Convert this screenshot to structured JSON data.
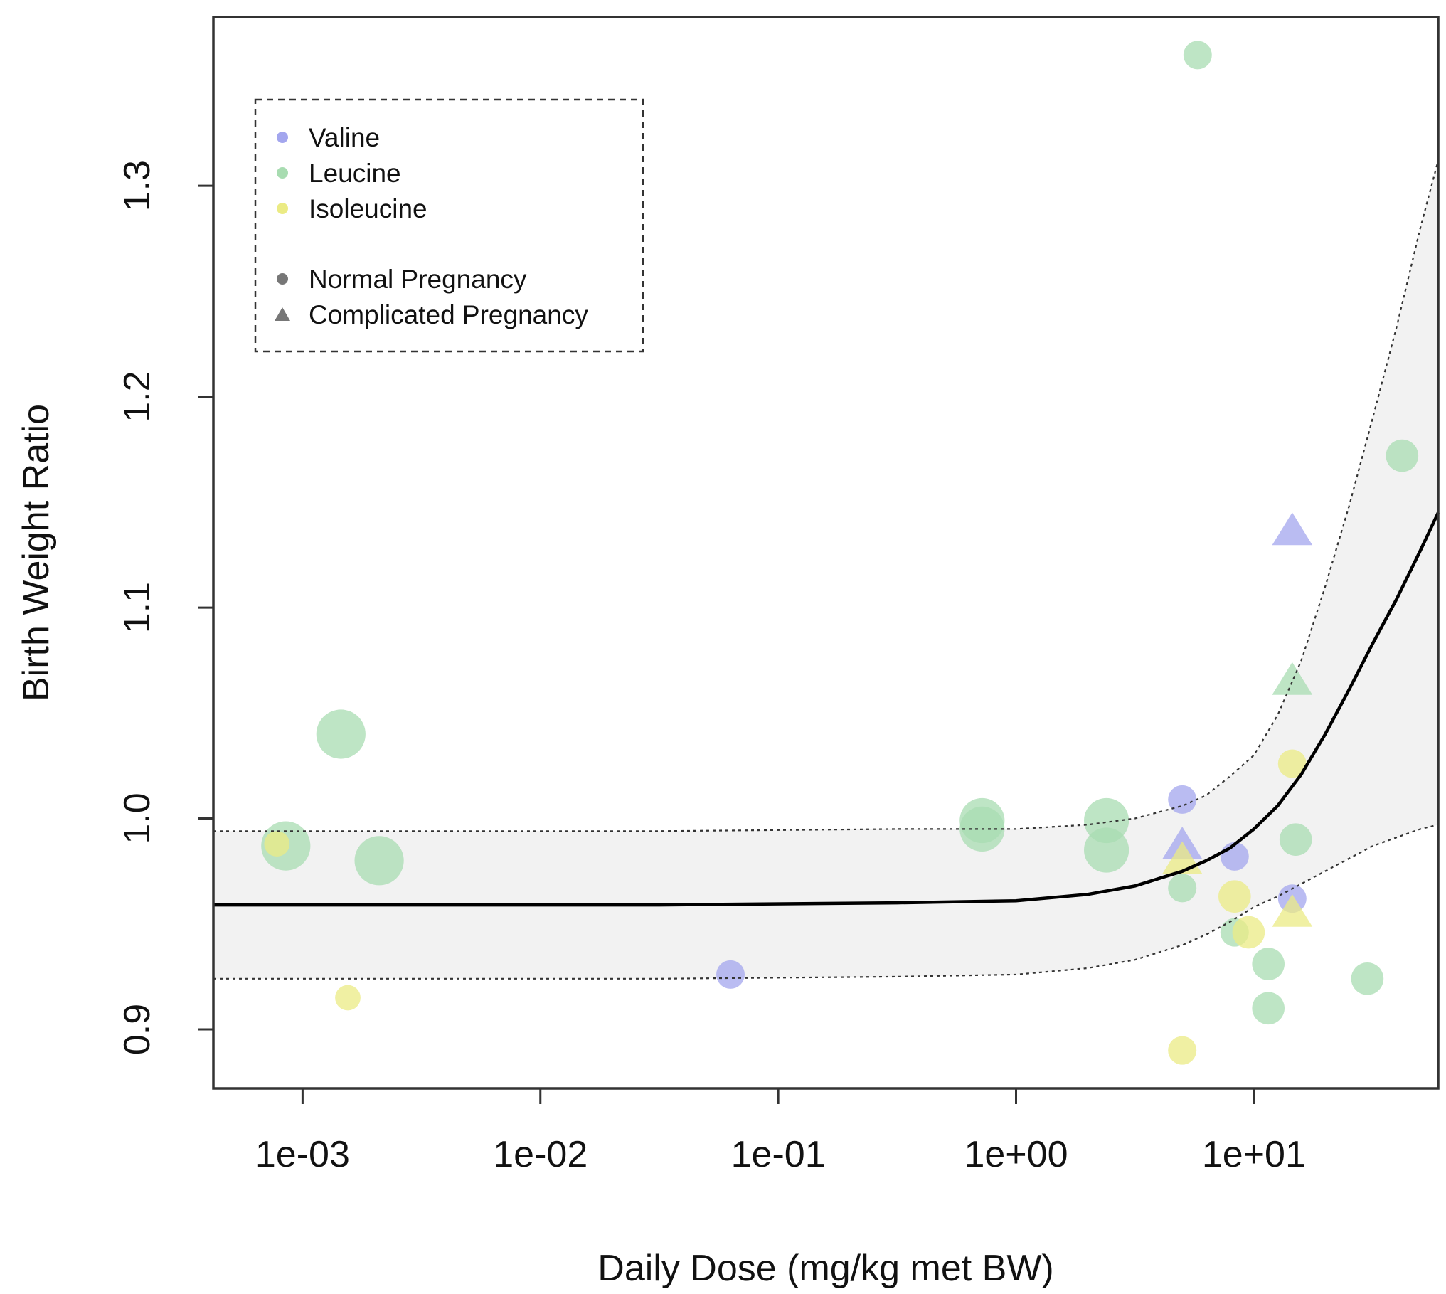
{
  "chart_data": {
    "type": "scatter",
    "title": "",
    "xlabel": "Daily Dose (mg/kg met BW)",
    "ylabel": "Birth Weight Ratio",
    "x_scale": "log10",
    "xlim_log10": [
      -3.375,
      1.775
    ],
    "ylim": [
      0.872,
      1.38
    ],
    "x_ticks": [
      {
        "value": 0.001,
        "label": "1e-03"
      },
      {
        "value": 0.01,
        "label": "1e-02"
      },
      {
        "value": 0.1,
        "label": "1e-01"
      },
      {
        "value": 1,
        "label": "1e+00"
      },
      {
        "value": 10,
        "label": "1e+01"
      }
    ],
    "y_ticks": [
      {
        "value": 0.9,
        "label": "0.9"
      },
      {
        "value": 1.0,
        "label": "1.0"
      },
      {
        "value": 1.1,
        "label": "1.1"
      },
      {
        "value": 1.2,
        "label": "1.2"
      },
      {
        "value": 1.3,
        "label": "1.3"
      }
    ],
    "colors": {
      "Valine": "#a3a6ee",
      "Leucine": "#a8dcb1",
      "Isoleucine": "#ebeb84",
      "fit": "#000000",
      "band": "#f2f2f2"
    },
    "legend": {
      "placement": "top-left",
      "series_entries": [
        "Valine",
        "Leucine",
        "Isoleucine"
      ],
      "shape_entries": [
        {
          "label": "Normal Pregnancy",
          "shape": "circle"
        },
        {
          "label": "Complicated Pregnancy",
          "shape": "triangle"
        }
      ]
    },
    "series": [
      {
        "name": "Valine",
        "points": [
          {
            "x": 0.063,
            "y": 0.926,
            "shape": "circle",
            "w": 1
          },
          {
            "x": 5.0,
            "y": 1.009,
            "shape": "circle",
            "w": 1
          },
          {
            "x": 8.3,
            "y": 0.982,
            "shape": "circle",
            "w": 1
          },
          {
            "x": 14.5,
            "y": 0.962,
            "shape": "circle",
            "w": 1
          },
          {
            "x": 14.5,
            "y": 1.136,
            "shape": "triangle",
            "w": 1
          },
          {
            "x": 5.0,
            "y": 0.987,
            "shape": "triangle",
            "w": 1
          }
        ]
      },
      {
        "name": "Leucine",
        "points": [
          {
            "x": 0.00085,
            "y": 0.987,
            "shape": "circle",
            "w": 3
          },
          {
            "x": 0.00145,
            "y": 1.04,
            "shape": "circle",
            "w": 3
          },
          {
            "x": 0.0021,
            "y": 0.98,
            "shape": "circle",
            "w": 3
          },
          {
            "x": 0.72,
            "y": 0.999,
            "shape": "circle",
            "w": 2.5
          },
          {
            "x": 0.72,
            "y": 0.995,
            "shape": "circle",
            "w": 2.5
          },
          {
            "x": 2.4,
            "y": 0.999,
            "shape": "circle",
            "w": 2.5
          },
          {
            "x": 2.4,
            "y": 0.985,
            "shape": "circle",
            "w": 2.5
          },
          {
            "x": 5.8,
            "y": 1.362,
            "shape": "circle",
            "w": 1
          },
          {
            "x": 5.0,
            "y": 0.967,
            "shape": "circle",
            "w": 1
          },
          {
            "x": 8.3,
            "y": 0.946,
            "shape": "circle",
            "w": 1
          },
          {
            "x": 11.5,
            "y": 0.931,
            "shape": "circle",
            "w": 1.3
          },
          {
            "x": 11.5,
            "y": 0.91,
            "shape": "circle",
            "w": 1.3
          },
          {
            "x": 15.0,
            "y": 0.99,
            "shape": "circle",
            "w": 1.3
          },
          {
            "x": 30.0,
            "y": 0.924,
            "shape": "circle",
            "w": 1.3
          },
          {
            "x": 42.0,
            "y": 1.172,
            "shape": "circle",
            "w": 1.3
          },
          {
            "x": 14.5,
            "y": 1.065,
            "shape": "triangle",
            "w": 1
          }
        ]
      },
      {
        "name": "Isoleucine",
        "points": [
          {
            "x": 0.00078,
            "y": 0.988,
            "shape": "circle",
            "w": 0.8
          },
          {
            "x": 0.00155,
            "y": 0.915,
            "shape": "circle",
            "w": 0.8
          },
          {
            "x": 5.0,
            "y": 0.89,
            "shape": "circle",
            "w": 1
          },
          {
            "x": 8.3,
            "y": 0.963,
            "shape": "circle",
            "w": 1.3
          },
          {
            "x": 9.5,
            "y": 0.946,
            "shape": "circle",
            "w": 1.3
          },
          {
            "x": 14.5,
            "y": 1.026,
            "shape": "circle",
            "w": 1
          },
          {
            "x": 14.5,
            "y": 0.955,
            "shape": "triangle",
            "w": 1
          },
          {
            "x": 5.0,
            "y": 0.98,
            "shape": "triangle",
            "w": 1
          }
        ]
      }
    ],
    "fit_curve": {
      "x_log10": [
        -3.375,
        -2.5,
        -1.5,
        -0.5,
        0,
        0.3,
        0.5,
        0.7,
        0.8,
        0.9,
        1.0,
        1.1,
        1.2,
        1.3,
        1.4,
        1.5,
        1.6,
        1.7,
        1.775
      ],
      "mean": [
        0.959,
        0.959,
        0.959,
        0.96,
        0.961,
        0.964,
        0.968,
        0.975,
        0.98,
        0.986,
        0.995,
        1.006,
        1.021,
        1.04,
        1.061,
        1.083,
        1.104,
        1.127,
        1.145
      ],
      "lower": [
        0.924,
        0.924,
        0.924,
        0.925,
        0.926,
        0.929,
        0.933,
        0.94,
        0.945,
        0.951,
        0.958,
        0.963,
        0.969,
        0.975,
        0.981,
        0.987,
        0.991,
        0.995,
        0.997
      ],
      "upper": [
        0.994,
        0.994,
        0.994,
        0.995,
        0.995,
        0.997,
        1.0,
        1.006,
        1.011,
        1.02,
        1.03,
        1.049,
        1.075,
        1.11,
        1.148,
        1.19,
        1.233,
        1.28,
        1.312
      ]
    }
  }
}
